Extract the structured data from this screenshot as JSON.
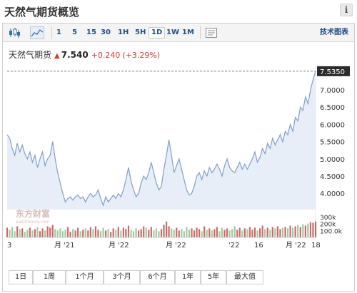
{
  "page": {
    "title": "天然气期货概览",
    "info_icon": "info-icon"
  },
  "toolbar": {
    "chart_type_icons": [
      "candlestick-icon",
      "area-chart-icon"
    ],
    "intervals": [
      "1",
      "5",
      "15",
      "30",
      "1H",
      "5H",
      "1D",
      "1W",
      "1M"
    ],
    "active_interval": "1D",
    "settings_icon": "chart-settings-icon",
    "tech_link": "技术图表"
  },
  "quote": {
    "name": "天然气期货",
    "arrow": "▲",
    "price": "7.540",
    "change": "+0.240",
    "change_pct": "(+3.29%)"
  },
  "ranges": [
    "1日",
    "1周",
    "1个月",
    "3个月",
    "6个月",
    "1年",
    "5年",
    "最大值"
  ],
  "watermark": {
    "text": "东方财富",
    "sub": "eastmoney.com"
  },
  "colors": {
    "line": "#7f9fcc",
    "area": "#e8eef8",
    "up_volume": "#c0504d",
    "down_volume": "#8fbf8f",
    "price_tag": "#2b2b2b"
  },
  "chart_data": {
    "type": "area",
    "price_tag": "7.5350",
    "y_ticks": [
      "7.0000",
      "6.5000",
      "6.0000",
      "5.5000",
      "5.0000",
      "4.5000",
      "4.0000"
    ],
    "volume_ticks": [
      "300k",
      "200k",
      "100.0k"
    ],
    "x_ticks": [
      "3",
      "月 '21",
      "月 '22",
      "月 '22",
      "'22",
      "16",
      "月 '22",
      "18"
    ],
    "ylim": [
      3.55,
      7.6
    ],
    "volume_max": 330,
    "series": [
      {
        "values": [
          5.7,
          5.6,
          5.3,
          5.1,
          5.45,
          5.2,
          5.4,
          5.15,
          5.0,
          5.2,
          4.9,
          5.1,
          4.75,
          5.0,
          5.2,
          4.8,
          5.0,
          5.1,
          5.5,
          5.0,
          4.6,
          4.3,
          4.0,
          3.75,
          3.85,
          3.9,
          3.8,
          3.9,
          3.95,
          3.85,
          3.9,
          3.75,
          3.9,
          4.0,
          3.9,
          3.95,
          4.1,
          3.85,
          3.65,
          3.9,
          3.75,
          3.85,
          3.95,
          3.85,
          4.0,
          3.9,
          4.1,
          4.4,
          4.75,
          4.35,
          4.1,
          3.9,
          4.0,
          4.3,
          4.5,
          4.4,
          4.6,
          4.9,
          4.6,
          4.3,
          4.1,
          4.2,
          4.7,
          5.1,
          5.55,
          5.1,
          4.6,
          4.8,
          5.0,
          4.7,
          4.4,
          4.1,
          3.95,
          4.0,
          4.2,
          4.5,
          4.6,
          4.4,
          4.65,
          4.5,
          4.75,
          4.6,
          4.7,
          4.85,
          4.7,
          4.5,
          4.8,
          5.0,
          4.75,
          4.65,
          4.6,
          4.75,
          4.9,
          4.7,
          4.85,
          4.7,
          4.85,
          5.0,
          5.2,
          4.9,
          5.05,
          5.3,
          5.15,
          5.45,
          5.3,
          5.6,
          5.4,
          5.55,
          5.7,
          5.5,
          5.8,
          5.7,
          6.0,
          5.8,
          6.2,
          6.1,
          6.5,
          6.4,
          6.8,
          6.6,
          7.0,
          7.3,
          7.54
        ]
      }
    ],
    "volume": [
      140,
      110,
      150,
      90,
      160,
      120,
      130,
      80,
      110,
      140,
      100,
      120,
      150,
      90,
      130,
      100,
      160,
      140,
      180,
      120,
      100,
      130,
      90,
      110,
      150,
      80,
      120,
      100,
      140,
      90,
      110,
      130,
      100,
      150,
      120,
      160,
      110,
      90,
      140,
      100,
      120,
      80,
      130,
      110,
      150,
      100,
      140,
      120,
      170,
      110,
      90,
      130,
      100,
      120,
      160,
      140,
      110,
      150,
      100,
      130,
      90,
      120,
      180,
      230,
      160,
      130,
      110,
      140,
      100,
      120,
      90,
      150,
      110,
      130,
      100,
      140,
      120,
      90,
      160,
      110,
      130,
      100,
      120,
      150,
      90,
      140,
      110,
      130,
      100,
      120,
      160,
      110,
      140,
      100,
      130,
      120,
      150,
      110,
      140,
      100,
      130,
      170,
      120,
      140,
      110,
      150,
      130,
      160,
      120,
      140,
      150,
      130,
      170,
      140,
      160,
      180,
      150,
      190,
      170,
      200,
      220,
      210,
      230
    ]
  }
}
